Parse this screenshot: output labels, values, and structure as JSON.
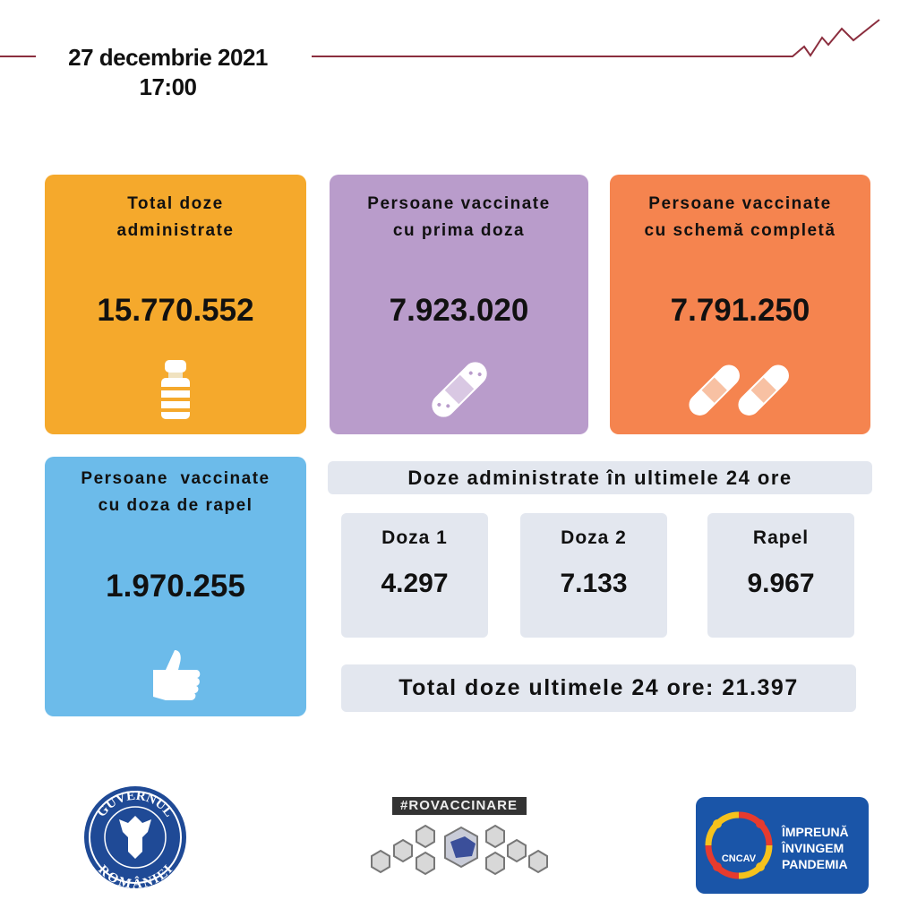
{
  "header": {
    "date": "27 decembrie 2021",
    "time": "17:00",
    "line_color": "#8b2e3e"
  },
  "cards": [
    {
      "title_line1": "Total doze",
      "title_line2": "administrate",
      "value": "15.770.552",
      "icon": "vaccine-vial-icon",
      "color": "#f5a92c"
    },
    {
      "title_line1": "Persoane vaccinate",
      "title_line2": "cu prima doza",
      "value": "7.923.020",
      "icon": "bandage-icon",
      "color": "#b99ccb"
    },
    {
      "title_line1": "Persoane vaccinate",
      "title_line2": "cu schemă completă",
      "value": "7.791.250",
      "icon": "two-bandages-icon",
      "color": "#f5844f"
    },
    {
      "title_line1": "Persoane  vaccinate",
      "title_line2": "cu doza de rapel",
      "value": "1.970.255",
      "icon": "thumbs-up-icon",
      "color": "#6cbbea"
    }
  ],
  "last24": {
    "heading": "Doze administrate în ultimele 24 ore",
    "items": [
      {
        "label": "Doza 1",
        "value": "4.297"
      },
      {
        "label": "Doza 2",
        "value": "7.133"
      },
      {
        "label": "Rapel",
        "value": "9.967"
      }
    ],
    "total": "Total doze ultimele 24 ore: 21.397"
  },
  "logos": {
    "gov": {
      "top": "GUVERNUL",
      "bottom": "ROMÂNIEI"
    },
    "rovaccinare": "#ROVACCINARE",
    "cncav": {
      "badge": "CNCAV",
      "line1": "ÎMPREUNĂ",
      "line2": "ÎNVINGEM",
      "line3": "PANDEMIA",
      "color": "#1a55a8"
    }
  }
}
